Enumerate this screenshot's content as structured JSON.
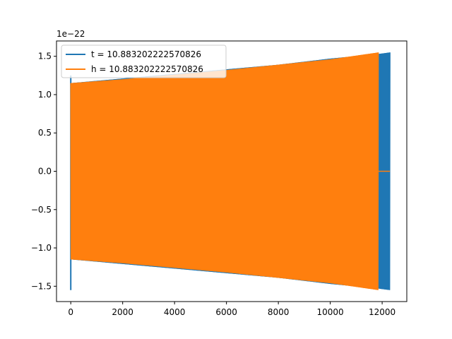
{
  "chart_data": {
    "type": "line",
    "title": "",
    "xlabel": "",
    "ylabel": "",
    "scale_note": "1e−22",
    "xlim": [
      -550,
      12950
    ],
    "ylim": [
      -1.7,
      1.7
    ],
    "x_ticks": [
      0,
      2000,
      4000,
      6000,
      8000,
      10000,
      12000
    ],
    "x_tick_labels": [
      "0",
      "2000",
      "4000",
      "6000",
      "8000",
      "10000",
      "12000"
    ],
    "y_ticks": [
      -1.5,
      -1.0,
      -0.5,
      0.0,
      0.5,
      1.0,
      1.5
    ],
    "y_tick_labels": [
      "−1.5",
      "−1.0",
      "−0.5",
      "0.0",
      "0.5",
      "1.0",
      "1.5"
    ],
    "grid": false,
    "legend_position": "top-left",
    "series": [
      {
        "name": "t = 10.883202222570826",
        "color": "#1f77b4",
        "x": [
          0,
          2000,
          4000,
          6000,
          8000,
          10000,
          11850,
          12300
        ],
        "envelope": [
          1.15,
          1.21,
          1.27,
          1.33,
          1.39,
          1.47,
          1.53,
          1.55
        ],
        "spike_x": 0,
        "spike_min": -1.55,
        "spike_max": 1.25,
        "end_x": 12300
      },
      {
        "name": "h = 10.883202222570826",
        "color": "#ff7f0e",
        "x": [
          0,
          2000,
          4000,
          6000,
          8000,
          10000,
          11850
        ],
        "envelope": [
          1.15,
          1.2,
          1.26,
          1.32,
          1.39,
          1.46,
          1.55
        ],
        "end_x": 11850,
        "flat_tail": [
          11850,
          12300
        ],
        "flat_value": 0.0
      }
    ]
  }
}
